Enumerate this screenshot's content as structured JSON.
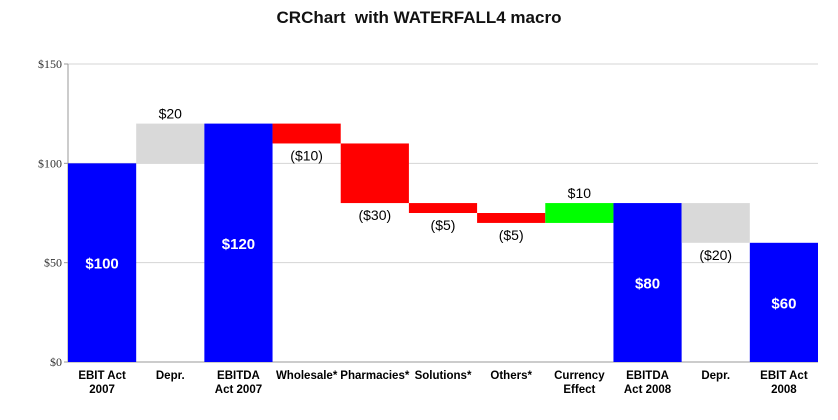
{
  "chart_data": {
    "type": "bar",
    "subtype": "waterfall",
    "title": "CRChart  with WATERFALL4 macro",
    "xlabel": "",
    "ylabel": "",
    "ylim": [
      0,
      150
    ],
    "yticks": [
      0,
      50,
      100,
      150
    ],
    "ytick_labels": [
      "$0",
      "$50",
      "$100",
      "$150"
    ],
    "grid": true,
    "legend": "none",
    "categories": [
      [
        "EBIT Act",
        "2007"
      ],
      [
        "Depr."
      ],
      [
        "EBITDA",
        "Act 2007"
      ],
      [
        "Wholesale*"
      ],
      [
        "Pharmacies*"
      ],
      [
        "Solutions*"
      ],
      [
        "Others*"
      ],
      [
        "Currency",
        "Effect"
      ],
      [
        "EBITDA",
        "Act 2008"
      ],
      [
        "Depr."
      ],
      [
        "EBIT Act",
        "2008"
      ]
    ],
    "steps": [
      {
        "kind": "total",
        "start": 0,
        "end": 100,
        "label": "$100",
        "color": "#0000ff"
      },
      {
        "kind": "change",
        "start": 100,
        "end": 120,
        "label": "$20",
        "color": "#d9d9d9"
      },
      {
        "kind": "total",
        "start": 0,
        "end": 120,
        "label": "$120",
        "color": "#0000ff"
      },
      {
        "kind": "change",
        "start": 120,
        "end": 110,
        "label": "($10)",
        "color": "#ff0000"
      },
      {
        "kind": "change",
        "start": 110,
        "end": 80,
        "label": "($30)",
        "color": "#ff0000"
      },
      {
        "kind": "change",
        "start": 80,
        "end": 75,
        "label": "($5)",
        "color": "#ff0000"
      },
      {
        "kind": "change",
        "start": 75,
        "end": 70,
        "label": "($5)",
        "color": "#ff0000"
      },
      {
        "kind": "change",
        "start": 70,
        "end": 80,
        "label": "$10",
        "color": "#00ff00"
      },
      {
        "kind": "total",
        "start": 0,
        "end": 80,
        "label": "$80",
        "color": "#0000ff"
      },
      {
        "kind": "change",
        "start": 80,
        "end": 60,
        "label": "($20)",
        "color": "#d9d9d9"
      },
      {
        "kind": "total",
        "start": 0,
        "end": 60,
        "label": "$60",
        "color": "#0000ff"
      }
    ]
  }
}
